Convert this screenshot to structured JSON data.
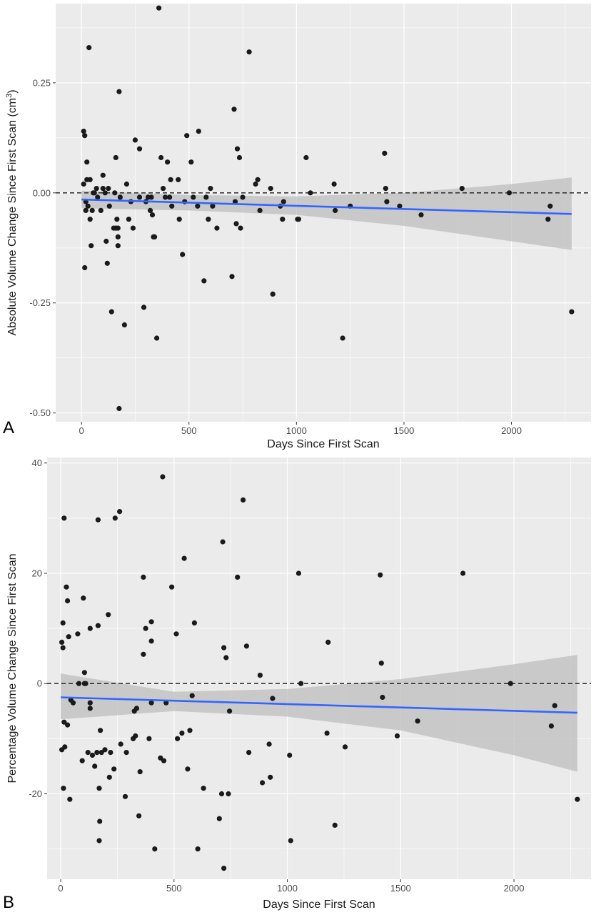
{
  "colors": {
    "panel_bg": "#ebebeb",
    "grid": "#ffffff",
    "point": "#1a1a1a",
    "trend": "#3366ff",
    "ribbon": "#bdbdbd",
    "zero_line": "#1a1a1a"
  },
  "chart_data": [
    {
      "type": "scatter",
      "panel_label": "A",
      "xlabel": "Days Since First Scan",
      "ylabel": "Absolute Volume Change Since First Scan (cm",
      "ylabel_sup": "3",
      "ylabel_close": ")",
      "xlim": [
        -120,
        2370
      ],
      "ylim": [
        -0.52,
        0.43
      ],
      "xticks": [
        0,
        500,
        1000,
        1500,
        2000
      ],
      "xtick_labels": [
        "0",
        "500",
        "1000",
        "1500",
        "2000"
      ],
      "yticks": [
        -0.5,
        -0.25,
        0,
        0.25
      ],
      "ytick_labels": [
        "-0.50",
        "-0.25",
        "0.00",
        "0.25"
      ],
      "reference_line_y": 0,
      "trend": {
        "x": [
          0,
          2280
        ],
        "y": [
          -0.015,
          -0.048
        ]
      },
      "ribbon": {
        "x": [
          0,
          500,
          1000,
          1500,
          2000,
          2280
        ],
        "upper": [
          0.005,
          -0.005,
          -0.008,
          0.0,
          0.02,
          0.035
        ],
        "lower": [
          -0.035,
          -0.04,
          -0.05,
          -0.075,
          -0.11,
          -0.13
        ]
      },
      "points": [
        [
          10,
          0.02
        ],
        [
          10,
          0.14
        ],
        [
          15,
          0.13
        ],
        [
          20,
          -0.02
        ],
        [
          20,
          -0.04
        ],
        [
          15,
          -0.17
        ],
        [
          25,
          0.03
        ],
        [
          25,
          0.07
        ],
        [
          30,
          -0.03
        ],
        [
          35,
          0.33
        ],
        [
          40,
          0.03
        ],
        [
          40,
          -0.06
        ],
        [
          45,
          -0.12
        ],
        [
          50,
          -0.04
        ],
        [
          55,
          0.0
        ],
        [
          60,
          0.0
        ],
        [
          70,
          0.01
        ],
        [
          75,
          -0.01
        ],
        [
          90,
          -0.04
        ],
        [
          100,
          0.04
        ],
        [
          100,
          0.01
        ],
        [
          110,
          0.0
        ],
        [
          115,
          -0.11
        ],
        [
          120,
          -0.16
        ],
        [
          125,
          0.01
        ],
        [
          130,
          -0.03
        ],
        [
          140,
          -0.27
        ],
        [
          150,
          -0.08
        ],
        [
          155,
          0.0
        ],
        [
          160,
          0.08
        ],
        [
          160,
          -0.08
        ],
        [
          165,
          -0.06
        ],
        [
          170,
          -0.08
        ],
        [
          170,
          -0.1
        ],
        [
          170,
          -0.12
        ],
        [
          175,
          0.23
        ],
        [
          175,
          -0.49
        ],
        [
          180,
          -0.01
        ],
        [
          200,
          -0.3
        ],
        [
          210,
          0.02
        ],
        [
          220,
          -0.06
        ],
        [
          230,
          -0.02
        ],
        [
          240,
          -0.08
        ],
        [
          250,
          0.12
        ],
        [
          270,
          0.1
        ],
        [
          270,
          -0.01
        ],
        [
          290,
          -0.26
        ],
        [
          300,
          -0.02
        ],
        [
          310,
          -0.01
        ],
        [
          320,
          -0.04
        ],
        [
          325,
          -0.01
        ],
        [
          330,
          -0.05
        ],
        [
          335,
          -0.1
        ],
        [
          340,
          -0.1
        ],
        [
          350,
          -0.33
        ],
        [
          360,
          0.42
        ],
        [
          370,
          0.08
        ],
        [
          380,
          0.01
        ],
        [
          390,
          -0.01
        ],
        [
          400,
          0.07
        ],
        [
          410,
          -0.01
        ],
        [
          415,
          0.03
        ],
        [
          420,
          -0.03
        ],
        [
          450,
          0.03
        ],
        [
          455,
          -0.06
        ],
        [
          470,
          -0.14
        ],
        [
          480,
          -0.02
        ],
        [
          490,
          0.13
        ],
        [
          510,
          0.07
        ],
        [
          520,
          -0.01
        ],
        [
          540,
          -0.03
        ],
        [
          545,
          0.14
        ],
        [
          570,
          -0.2
        ],
        [
          580,
          -0.01
        ],
        [
          590,
          -0.06
        ],
        [
          600,
          0.01
        ],
        [
          610,
          -0.03
        ],
        [
          630,
          -0.08
        ],
        [
          700,
          -0.19
        ],
        [
          710,
          0.19
        ],
        [
          715,
          -0.02
        ],
        [
          720,
          -0.07
        ],
        [
          725,
          0.1
        ],
        [
          735,
          0.08
        ],
        [
          740,
          -0.08
        ],
        [
          750,
          -0.01
        ],
        [
          780,
          0.32
        ],
        [
          810,
          0.02
        ],
        [
          820,
          0.03
        ],
        [
          830,
          -0.04
        ],
        [
          880,
          0.01
        ],
        [
          890,
          -0.23
        ],
        [
          925,
          -0.03
        ],
        [
          935,
          -0.06
        ],
        [
          940,
          -0.02
        ],
        [
          1005,
          -0.06
        ],
        [
          1010,
          -0.06
        ],
        [
          1045,
          0.08
        ],
        [
          1065,
          0.0
        ],
        [
          1175,
          0.02
        ],
        [
          1180,
          -0.04
        ],
        [
          1215,
          -0.33
        ],
        [
          1250,
          -0.03
        ],
        [
          1410,
          0.09
        ],
        [
          1415,
          0.01
        ],
        [
          1420,
          -0.02
        ],
        [
          1480,
          -0.03
        ],
        [
          1580,
          -0.05
        ],
        [
          1770,
          0.01
        ],
        [
          1990,
          0.0
        ],
        [
          2170,
          -0.06
        ],
        [
          2180,
          -0.03
        ],
        [
          2280,
          -0.27
        ]
      ]
    },
    {
      "type": "scatter",
      "panel_label": "B",
      "xlabel": "Days Since First Scan",
      "ylabel": "Percentage Volume Change Since First Scan",
      "ylabel_sup": "",
      "ylabel_close": "",
      "xlim": [
        -60,
        2340
      ],
      "ylim": [
        -35.5,
        41
      ],
      "xticks": [
        0,
        500,
        1000,
        1500,
        2000
      ],
      "xtick_labels": [
        "0",
        "500",
        "1000",
        "1500",
        "2000"
      ],
      "yticks": [
        -20,
        0,
        20,
        40
      ],
      "ytick_labels": [
        "-20",
        "0",
        "20",
        "40"
      ],
      "reference_line_y": 0,
      "trend": {
        "x": [
          0,
          2280
        ],
        "y": [
          -2.5,
          -5.3
        ]
      },
      "ribbon": {
        "x": [
          0,
          500,
          1000,
          1500,
          2000,
          2280
        ],
        "upper": [
          1.8,
          -1.5,
          -1.0,
          0.8,
          3.5,
          5.2
        ],
        "lower": [
          -6.5,
          -5.0,
          -6.0,
          -8.5,
          -13.0,
          -16.0
        ]
      },
      "points": [
        [
          5,
          7.5
        ],
        [
          5,
          -12
        ],
        [
          10,
          11
        ],
        [
          10,
          6.5
        ],
        [
          12,
          -19
        ],
        [
          15,
          30
        ],
        [
          15,
          -7
        ],
        [
          18,
          -11.5
        ],
        [
          25,
          17.5
        ],
        [
          30,
          15
        ],
        [
          30,
          -7.5
        ],
        [
          35,
          8.5
        ],
        [
          40,
          -21
        ],
        [
          45,
          -3
        ],
        [
          55,
          -3.5
        ],
        [
          75,
          9
        ],
        [
          80,
          0
        ],
        [
          95,
          -14
        ],
        [
          100,
          15.5
        ],
        [
          105,
          2
        ],
        [
          105,
          0
        ],
        [
          110,
          0
        ],
        [
          120,
          -12.5
        ],
        [
          130,
          10
        ],
        [
          130,
          -4.5
        ],
        [
          130,
          -3.5
        ],
        [
          140,
          -13
        ],
        [
          150,
          -15
        ],
        [
          160,
          -12.5
        ],
        [
          165,
          29.7
        ],
        [
          165,
          10.5
        ],
        [
          170,
          -19
        ],
        [
          170,
          -28.5
        ],
        [
          172,
          -25
        ],
        [
          175,
          -8.5
        ],
        [
          180,
          -12.5
        ],
        [
          195,
          -12
        ],
        [
          210,
          12.5
        ],
        [
          215,
          -17
        ],
        [
          220,
          -12.5
        ],
        [
          235,
          -15.5
        ],
        [
          240,
          30
        ],
        [
          260,
          31.2
        ],
        [
          265,
          -11
        ],
        [
          285,
          -20.5
        ],
        [
          290,
          -12.5
        ],
        [
          320,
          -10
        ],
        [
          325,
          -5
        ],
        [
          330,
          -9.5
        ],
        [
          335,
          -4.5
        ],
        [
          345,
          -24
        ],
        [
          350,
          -16
        ],
        [
          365,
          19.3
        ],
        [
          365,
          5.3
        ],
        [
          375,
          10
        ],
        [
          390,
          -10
        ],
        [
          400,
          11.2
        ],
        [
          400,
          7.7
        ],
        [
          400,
          -3.5
        ],
        [
          415,
          -30
        ],
        [
          440,
          -13.5
        ],
        [
          450,
          37.5
        ],
        [
          455,
          -14
        ],
        [
          465,
          -3.5
        ],
        [
          490,
          17.5
        ],
        [
          510,
          9
        ],
        [
          515,
          -10
        ],
        [
          535,
          -9
        ],
        [
          545,
          22.7
        ],
        [
          560,
          -15.5
        ],
        [
          570,
          -8.5
        ],
        [
          580,
          -2.2
        ],
        [
          590,
          11
        ],
        [
          605,
          -30
        ],
        [
          630,
          -19
        ],
        [
          700,
          -24.5
        ],
        [
          710,
          -20
        ],
        [
          715,
          25.7
        ],
        [
          720,
          6.5
        ],
        [
          720,
          -33.5
        ],
        [
          730,
          4.7
        ],
        [
          740,
          -20
        ],
        [
          745,
          -5
        ],
        [
          780,
          19.3
        ],
        [
          805,
          33.3
        ],
        [
          820,
          6.8
        ],
        [
          830,
          -12.5
        ],
        [
          880,
          1.5
        ],
        [
          890,
          -18
        ],
        [
          920,
          -11
        ],
        [
          925,
          -17
        ],
        [
          935,
          -2.7
        ],
        [
          1010,
          -13
        ],
        [
          1015,
          -28.5
        ],
        [
          1050,
          20
        ],
        [
          1060,
          0
        ],
        [
          1175,
          -9
        ],
        [
          1180,
          7.5
        ],
        [
          1210,
          -25.7
        ],
        [
          1255,
          -11.5
        ],
        [
          1410,
          19.7
        ],
        [
          1415,
          3.7
        ],
        [
          1420,
          -2.5
        ],
        [
          1485,
          -9.5
        ],
        [
          1575,
          -6.8
        ],
        [
          1775,
          20
        ],
        [
          1985,
          0
        ],
        [
          2165,
          -7.7
        ],
        [
          2180,
          -4
        ],
        [
          2280,
          -21
        ]
      ]
    }
  ]
}
